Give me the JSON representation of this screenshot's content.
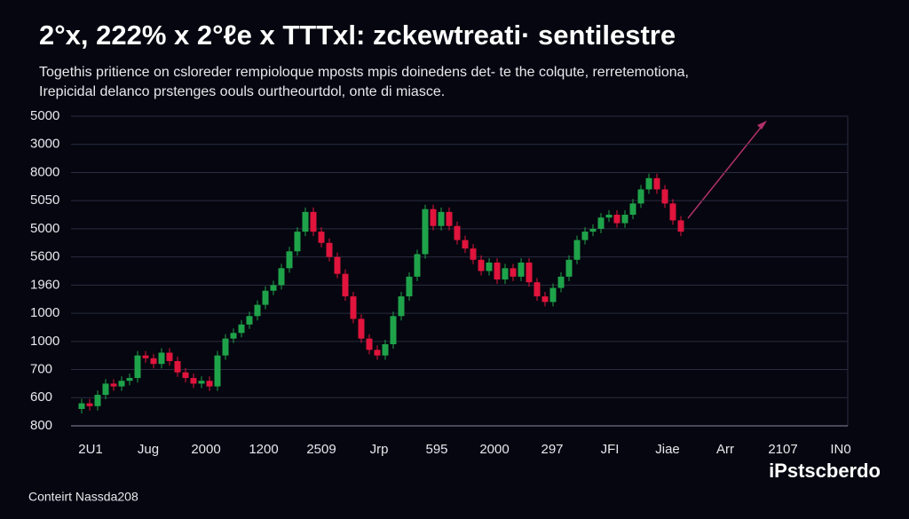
{
  "chart_data": {
    "type": "candlestick",
    "title": "2°x, 222% x 2°ℓe x TTTxl: zckewtreati· sentilestre",
    "subtitle": [
      "Togethis pritience on csloreder rempioloque mposts mpis doinedens det- te the colqute, rerretemotiona,",
      "Irepicidal delanco prstenges oouls ourtheourtdol, onte di miasce."
    ],
    "footer": "Conteirt Nassda208",
    "brand": "iPstscberdo",
    "x_labels": [
      "2U1",
      "Jug",
      "2000",
      "1200",
      "2509",
      "Jrp",
      "595",
      "2000",
      "297",
      "JFI",
      "Jiae",
      "Arr",
      "2107",
      "IN0"
    ],
    "ylim": [
      0,
      11
    ],
    "yticks": [
      {
        "value": 11,
        "label": "5000"
      },
      {
        "value": 10,
        "label": "3000"
      },
      {
        "value": 9,
        "label": "8000"
      },
      {
        "value": 8,
        "label": "5050"
      },
      {
        "value": 7,
        "label": "5000"
      },
      {
        "value": 6,
        "label": "5600"
      },
      {
        "value": 5,
        "label": "1960"
      },
      {
        "value": 4,
        "label": "1000"
      },
      {
        "value": 3,
        "label": "1000"
      },
      {
        "value": 2,
        "label": "700"
      },
      {
        "value": 1,
        "label": "600"
      },
      {
        "value": 0,
        "label": "800"
      }
    ],
    "grid": true,
    "up_color": "#1fa34a",
    "down_color": "#e0143c",
    "open": [
      0.6,
      0.8,
      0.7,
      1.1,
      1.5,
      1.4,
      1.6,
      1.7,
      2.5,
      2.4,
      2.2,
      2.6,
      2.3,
      1.9,
      1.7,
      1.5,
      1.6,
      1.4,
      2.5,
      3.1,
      3.3,
      3.6,
      3.9,
      4.3,
      4.8,
      5.0,
      5.6,
      6.2,
      6.9,
      7.6,
      6.9,
      6.5,
      6.0,
      5.4,
      4.6,
      3.8,
      3.1,
      2.7,
      2.5,
      2.9,
      3.9,
      4.6,
      5.3,
      6.1,
      7.7,
      7.1,
      7.6,
      7.1,
      6.6,
      6.3,
      5.9,
      5.5,
      5.8,
      5.2,
      5.6,
      5.3,
      5.8,
      5.1,
      4.6,
      4.4,
      4.9,
      5.3,
      5.9,
      6.6,
      6.9,
      7.0,
      7.4,
      7.5,
      7.2,
      7.5,
      7.9,
      8.4,
      8.8,
      8.4,
      7.9,
      7.3
    ],
    "close": [
      0.8,
      0.7,
      1.1,
      1.5,
      1.4,
      1.6,
      1.7,
      2.5,
      2.4,
      2.2,
      2.6,
      2.3,
      1.9,
      1.7,
      1.5,
      1.6,
      1.4,
      2.5,
      3.1,
      3.3,
      3.6,
      3.9,
      4.3,
      4.8,
      5.0,
      5.6,
      6.2,
      6.9,
      7.6,
      6.9,
      6.5,
      6.0,
      5.4,
      4.6,
      3.8,
      3.1,
      2.7,
      2.5,
      2.9,
      3.9,
      4.6,
      5.3,
      6.1,
      7.7,
      7.1,
      7.6,
      7.1,
      6.6,
      6.3,
      5.9,
      5.5,
      5.8,
      5.2,
      5.6,
      5.3,
      5.8,
      5.1,
      4.6,
      4.4,
      4.9,
      5.3,
      5.9,
      6.6,
      6.9,
      7.0,
      7.4,
      7.5,
      7.2,
      7.5,
      7.9,
      8.4,
      8.8,
      8.4,
      7.9,
      7.3,
      6.9
    ]
  }
}
